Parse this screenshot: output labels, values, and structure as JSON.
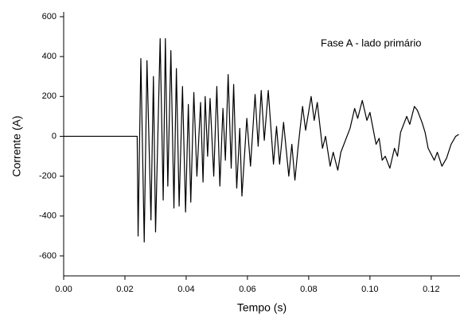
{
  "chart_data": {
    "type": "line",
    "xlabel": "Tempo (s)",
    "ylabel": "Corrente (A)",
    "annotation": "Fase A - lado primário",
    "xlim": [
      0,
      0.1294
    ],
    "ylim": [
      -700,
      600
    ],
    "xticks": [
      {
        "value": 0,
        "label": "0.00"
      },
      {
        "value": 0.02,
        "label": "0.02"
      },
      {
        "value": 0.04,
        "label": "0.04"
      },
      {
        "value": 0.06,
        "label": "0.06"
      },
      {
        "value": 0.08,
        "label": "0.08"
      },
      {
        "value": 0.1,
        "label": "0.10"
      },
      {
        "value": 0.12,
        "label": "0.12"
      }
    ],
    "yticks": [
      -600,
      -400,
      -200,
      0,
      200,
      400,
      600
    ],
    "grid": false,
    "x": [
      0,
      0.024,
      0.0243,
      0.0252,
      0.0263,
      0.0272,
      0.0285,
      0.0293,
      0.03,
      0.0315,
      0.0325,
      0.0332,
      0.034,
      0.035,
      0.036,
      0.0368,
      0.0377,
      0.0388,
      0.0398,
      0.0407,
      0.0415,
      0.0425,
      0.0435,
      0.0447,
      0.0455,
      0.0462,
      0.047,
      0.0478,
      0.049,
      0.05,
      0.051,
      0.052,
      0.0528,
      0.0537,
      0.0547,
      0.0555,
      0.0565,
      0.0575,
      0.0582,
      0.0598,
      0.061,
      0.0625,
      0.0635,
      0.0645,
      0.0655,
      0.0668,
      0.0685,
      0.0695,
      0.0705,
      0.0718,
      0.0735,
      0.0745,
      0.0755,
      0.0765,
      0.078,
      0.079,
      0.0808,
      0.0818,
      0.0828,
      0.0845,
      0.0855,
      0.087,
      0.088,
      0.0895,
      0.0905,
      0.0935,
      0.095,
      0.096,
      0.0975,
      0.099,
      0.1,
      0.102,
      0.103,
      0.104,
      0.105,
      0.1065,
      0.108,
      0.109,
      0.11,
      0.112,
      0.113,
      0.1145,
      0.1155,
      0.117,
      0.118,
      0.119,
      0.121,
      0.122,
      0.1235,
      0.125,
      0.1265,
      0.128,
      0.129
    ],
    "series": [
      {
        "name": "Fase A",
        "color": "#000000",
        "values": [
          0,
          0,
          -500,
          390,
          -530,
          380,
          -420,
          300,
          -480,
          490,
          -320,
          490,
          -250,
          430,
          -360,
          340,
          -350,
          250,
          -380,
          160,
          -330,
          220,
          -200,
          170,
          -230,
          200,
          -100,
          190,
          -200,
          250,
          -250,
          140,
          -120,
          310,
          -160,
          260,
          -260,
          40,
          -300,
          90,
          -150,
          210,
          -50,
          230,
          -20,
          230,
          -140,
          50,
          -140,
          70,
          -200,
          -40,
          -220,
          -60,
          150,
          30,
          200,
          80,
          170,
          -60,
          0,
          -150,
          -80,
          -170,
          -80,
          40,
          140,
          90,
          180,
          80,
          120,
          -40,
          -10,
          -120,
          -100,
          -160,
          -60,
          -100,
          20,
          100,
          60,
          150,
          130,
          70,
          20,
          -60,
          -120,
          -80,
          -150,
          -110,
          -40,
          0,
          10
        ]
      }
    ]
  }
}
